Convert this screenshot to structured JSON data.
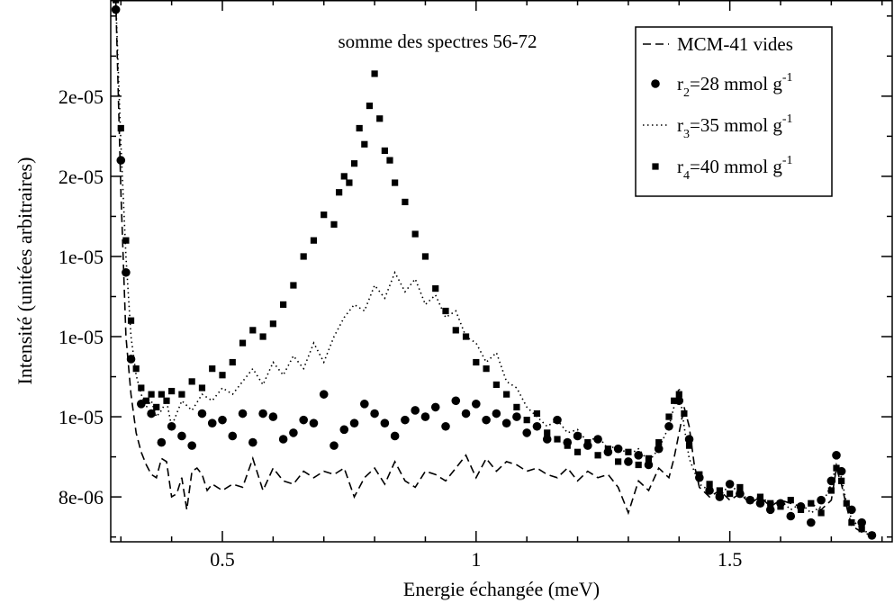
{
  "chart_data": {
    "type": "scatter",
    "title": "",
    "annotation": "somme des spectres 56-72",
    "xlabel": "Energie échangée (meV)",
    "ylabel": "Intensité (unitées arbitraires)",
    "xlim": [
      0.28,
      1.82
    ],
    "ylim": [
      6.6e-06,
      2.35e-05
    ],
    "x_ticks": [
      0.5,
      1,
      1.5
    ],
    "x_tick_labels": [
      "0.5",
      "1",
      "1.5"
    ],
    "y_ticks": [
      8e-06,
      1.05e-05,
      1.3e-05,
      1.55e-05,
      1.8e-05,
      2.05e-05
    ],
    "y_tick_labels": [
      "8e-06",
      "1e-05",
      "1e-05",
      "1e-05",
      "2e-05",
      "2e-05"
    ],
    "grid": false,
    "legend_position": "top-right",
    "series": [
      {
        "name": "MCM-41 vides",
        "legend_label": {
          "prefix": "MCM-41 vides",
          "sub": "",
          "mid": "",
          "sup": ""
        },
        "style": "dashed-line",
        "color": "#000000",
        "x": [
          0.29,
          0.3,
          0.31,
          0.32,
          0.33,
          0.34,
          0.35,
          0.36,
          0.37,
          0.38,
          0.39,
          0.4,
          0.41,
          0.42,
          0.43,
          0.44,
          0.45,
          0.46,
          0.47,
          0.48,
          0.49,
          0.5,
          0.52,
          0.54,
          0.56,
          0.58,
          0.6,
          0.62,
          0.64,
          0.66,
          0.68,
          0.7,
          0.72,
          0.74,
          0.76,
          0.78,
          0.8,
          0.82,
          0.84,
          0.86,
          0.88,
          0.9,
          0.92,
          0.94,
          0.96,
          0.98,
          1.0,
          1.02,
          1.04,
          1.06,
          1.08,
          1.1,
          1.12,
          1.14,
          1.16,
          1.18,
          1.2,
          1.22,
          1.24,
          1.26,
          1.28,
          1.3,
          1.32,
          1.34,
          1.36,
          1.38,
          1.39,
          1.4,
          1.41,
          1.42,
          1.43,
          1.44,
          1.46,
          1.48,
          1.5,
          1.52,
          1.54,
          1.56,
          1.58,
          1.6,
          1.62,
          1.64,
          1.66,
          1.68,
          1.7,
          1.71,
          1.72,
          1.73,
          1.74,
          1.76,
          1.78
        ],
        "y": [
          2.35e-05,
          1.75e-05,
          1.3e-05,
          1.12e-05,
          1e-05,
          9.4e-06,
          9e-06,
          8.7e-06,
          8.6e-06,
          9.2e-06,
          9.1e-06,
          8e-06,
          8.1e-06,
          8.6e-06,
          7.6e-06,
          8.8e-06,
          8.9e-06,
          8.7e-06,
          8.2e-06,
          8.4e-06,
          8.3e-06,
          8.2e-06,
          8.4e-06,
          8.3e-06,
          9.2e-06,
          8.2e-06,
          8.9e-06,
          8.5e-06,
          8.4e-06,
          8.8e-06,
          8.6e-06,
          8.8e-06,
          8.7e-06,
          8.9e-06,
          8e-06,
          8.6e-06,
          8.9e-06,
          8.4e-06,
          9.1e-06,
          8.5e-06,
          8.3e-06,
          8.8e-06,
          8.7e-06,
          8.5e-06,
          8.9e-06,
          9.3e-06,
          8.6e-06,
          9.2e-06,
          8.8e-06,
          9.1e-06,
          9e-06,
          8.8e-06,
          8.9e-06,
          8.7e-06,
          8.6e-06,
          8.9e-06,
          8.5e-06,
          8.8e-06,
          8.6e-06,
          8.7e-06,
          8.3e-06,
          7.5e-06,
          8.5e-06,
          8.2e-06,
          8.9e-06,
          8.6e-06,
          9.2e-06,
          1e-05,
          1.08e-05,
          1.02e-05,
          9e-06,
          8.3e-06,
          8e-06,
          8.2e-06,
          7.9e-06,
          8.1e-06,
          7.8e-06,
          8e-06,
          7.7e-06,
          7.9e-06,
          7.8e-06,
          7.7e-06,
          7.8e-06,
          7.6e-06,
          7.9e-06,
          8.9e-06,
          8.4e-06,
          7.7e-06,
          7.1e-06,
          6.9e-06,
          6.8e-06
        ]
      },
      {
        "name": "r2=28 mmol g-1",
        "legend_label": {
          "prefix": "r",
          "sub": "2",
          "mid": "=28 mmol g",
          "sup": "-1"
        },
        "style": "circles",
        "color": "#000000",
        "x": [
          0.29,
          0.3,
          0.31,
          0.32,
          0.34,
          0.36,
          0.38,
          0.4,
          0.42,
          0.44,
          0.46,
          0.48,
          0.5,
          0.52,
          0.54,
          0.56,
          0.58,
          0.6,
          0.62,
          0.64,
          0.66,
          0.68,
          0.7,
          0.72,
          0.74,
          0.76,
          0.78,
          0.8,
          0.82,
          0.84,
          0.86,
          0.88,
          0.9,
          0.92,
          0.94,
          0.96,
          0.98,
          1.0,
          1.02,
          1.04,
          1.06,
          1.08,
          1.1,
          1.12,
          1.14,
          1.16,
          1.18,
          1.2,
          1.22,
          1.24,
          1.26,
          1.28,
          1.3,
          1.32,
          1.34,
          1.36,
          1.38,
          1.4,
          1.42,
          1.44,
          1.46,
          1.48,
          1.5,
          1.52,
          1.54,
          1.56,
          1.58,
          1.6,
          1.62,
          1.64,
          1.66,
          1.68,
          1.7,
          1.71,
          1.72,
          1.74,
          1.76,
          1.78
        ],
        "y": [
          2.32e-05,
          1.85e-05,
          1.5e-05,
          1.23e-05,
          1.09e-05,
          1.06e-05,
          9.7e-06,
          1.02e-05,
          9.9e-06,
          9.6e-06,
          1.06e-05,
          1.03e-05,
          1.04e-05,
          9.9e-06,
          1.06e-05,
          9.7e-06,
          1.06e-05,
          1.05e-05,
          9.8e-06,
          1e-05,
          1.04e-05,
          1.03e-05,
          1.12e-05,
          9.6e-06,
          1.01e-05,
          1.03e-05,
          1.09e-05,
          1.06e-05,
          1.03e-05,
          9.9e-06,
          1.04e-05,
          1.07e-05,
          1.05e-05,
          1.08e-05,
          1.02e-05,
          1.1e-05,
          1.06e-05,
          1.09e-05,
          1.04e-05,
          1.06e-05,
          1.03e-05,
          1.05e-05,
          1e-05,
          1.02e-05,
          9.8e-06,
          1.04e-05,
          9.7e-06,
          9.9e-06,
          9.6e-06,
          9.8e-06,
          9.4e-06,
          9.5e-06,
          9.1e-06,
          9.3e-06,
          9e-06,
          9.5e-06,
          1.02e-05,
          1.1e-05,
          9.8e-06,
          8.6e-06,
          8.2e-06,
          8e-06,
          8.4e-06,
          8.1e-06,
          7.9e-06,
          7.8e-06,
          7.6e-06,
          7.8e-06,
          7.4e-06,
          7.7e-06,
          7.2e-06,
          7.9e-06,
          8.5e-06,
          9.3e-06,
          8.8e-06,
          7.6e-06,
          7.2e-06,
          6.8e-06
        ]
      },
      {
        "name": "r3=35 mmol g-1",
        "legend_label": {
          "prefix": "r",
          "sub": "3",
          "mid": "=35 mmol g",
          "sup": "-1"
        },
        "style": "dotted-line",
        "color": "#000000",
        "x": [
          0.29,
          0.3,
          0.31,
          0.32,
          0.33,
          0.34,
          0.35,
          0.36,
          0.37,
          0.38,
          0.39,
          0.4,
          0.42,
          0.44,
          0.46,
          0.48,
          0.5,
          0.52,
          0.54,
          0.56,
          0.58,
          0.6,
          0.62,
          0.64,
          0.66,
          0.68,
          0.7,
          0.72,
          0.74,
          0.76,
          0.78,
          0.8,
          0.82,
          0.84,
          0.86,
          0.88,
          0.9,
          0.92,
          0.94,
          0.96,
          0.98,
          1.0,
          1.02,
          1.04,
          1.06,
          1.08,
          1.1,
          1.12,
          1.14,
          1.16,
          1.18,
          1.2,
          1.22,
          1.24,
          1.26,
          1.28,
          1.3,
          1.32,
          1.34,
          1.36,
          1.38,
          1.39,
          1.4,
          1.41,
          1.42,
          1.44,
          1.46,
          1.48,
          1.5,
          1.52,
          1.54,
          1.56,
          1.58,
          1.6,
          1.62,
          1.64,
          1.66,
          1.68,
          1.7,
          1.71,
          1.72,
          1.73,
          1.74,
          1.76,
          1.78
        ],
        "y": [
          2.35e-05,
          1.9e-05,
          1.55e-05,
          1.3e-05,
          1.18e-05,
          1.12e-05,
          1.08e-05,
          1.1e-05,
          1.05e-05,
          1.07e-05,
          1.1e-05,
          1.02e-05,
          1.1e-05,
          1.07e-05,
          1.12e-05,
          1.1e-05,
          1.14e-05,
          1.12e-05,
          1.16e-05,
          1.2e-05,
          1.15e-05,
          1.22e-05,
          1.18e-05,
          1.24e-05,
          1.2e-05,
          1.28e-05,
          1.22e-05,
          1.3e-05,
          1.36e-05,
          1.4e-05,
          1.38e-05,
          1.46e-05,
          1.42e-05,
          1.5e-05,
          1.44e-05,
          1.48e-05,
          1.4e-05,
          1.43e-05,
          1.36e-05,
          1.38e-05,
          1.3e-05,
          1.28e-05,
          1.22e-05,
          1.25e-05,
          1.16e-05,
          1.14e-05,
          1.08e-05,
          1.05e-05,
          1.02e-05,
          1.04e-05,
          1e-05,
          1.01e-05,
          9.7e-06,
          9.9e-06,
          9.5e-06,
          9.6e-06,
          9.3e-06,
          9.5e-06,
          9.1e-06,
          9.5e-06,
          1.02e-05,
          1.08e-05,
          1.14e-05,
          1.02e-05,
          9.2e-06,
          8.4e-06,
          8.2e-06,
          8e-06,
          8.4e-06,
          8.1e-06,
          7.9e-06,
          8e-06,
          7.8e-06,
          7.9e-06,
          7.6e-06,
          7.8e-06,
          7.5e-06,
          7.7e-06,
          8.4e-06,
          9e-06,
          8.6e-06,
          7.8e-06,
          7.3e-06,
          7e-06,
          6.8e-06
        ]
      },
      {
        "name": "r4=40 mmol g-1",
        "legend_label": {
          "prefix": "r",
          "sub": "4",
          "mid": "=40 mmol g",
          "sup": "-1"
        },
        "style": "squares",
        "color": "#000000",
        "x": [
          0.29,
          0.3,
          0.31,
          0.32,
          0.33,
          0.34,
          0.35,
          0.36,
          0.37,
          0.38,
          0.39,
          0.4,
          0.42,
          0.44,
          0.46,
          0.48,
          0.5,
          0.52,
          0.54,
          0.56,
          0.58,
          0.6,
          0.62,
          0.64,
          0.66,
          0.68,
          0.7,
          0.72,
          0.73,
          0.74,
          0.75,
          0.76,
          0.77,
          0.78,
          0.79,
          0.8,
          0.81,
          0.82,
          0.83,
          0.84,
          0.86,
          0.88,
          0.9,
          0.92,
          0.94,
          0.96,
          0.98,
          1.0,
          1.02,
          1.04,
          1.06,
          1.08,
          1.1,
          1.12,
          1.14,
          1.16,
          1.18,
          1.2,
          1.22,
          1.24,
          1.26,
          1.28,
          1.3,
          1.32,
          1.34,
          1.36,
          1.38,
          1.39,
          1.4,
          1.41,
          1.42,
          1.44,
          1.46,
          1.48,
          1.5,
          1.52,
          1.54,
          1.56,
          1.58,
          1.6,
          1.62,
          1.64,
          1.66,
          1.68,
          1.7,
          1.71,
          1.72,
          1.73,
          1.74,
          1.76,
          1.78
        ],
        "y": [
          2.35e-05,
          1.95e-05,
          1.6e-05,
          1.35e-05,
          1.2e-05,
          1.14e-05,
          1.1e-05,
          1.12e-05,
          1.08e-05,
          1.12e-05,
          1.1e-05,
          1.13e-05,
          1.12e-05,
          1.16e-05,
          1.14e-05,
          1.2e-05,
          1.18e-05,
          1.22e-05,
          1.28e-05,
          1.32e-05,
          1.3e-05,
          1.34e-05,
          1.4e-05,
          1.46e-05,
          1.55e-05,
          1.6e-05,
          1.68e-05,
          1.65e-05,
          1.75e-05,
          1.8e-05,
          1.78e-05,
          1.84e-05,
          1.95e-05,
          1.9e-05,
          2.02e-05,
          2.12e-05,
          1.98e-05,
          1.88e-05,
          1.85e-05,
          1.78e-05,
          1.72e-05,
          1.62e-05,
          1.55e-05,
          1.45e-05,
          1.38e-05,
          1.32e-05,
          1.3e-05,
          1.22e-05,
          1.2e-05,
          1.15e-05,
          1.12e-05,
          1.08e-05,
          1.04e-05,
          1.06e-05,
          1e-05,
          9.8e-06,
          9.6e-06,
          9.4e-06,
          9.7e-06,
          9.3e-06,
          9.5e-06,
          9.1e-06,
          9.4e-06,
          9e-06,
          9.2e-06,
          9.7e-06,
          1.05e-05,
          1.1e-05,
          1.12e-05,
          1.06e-05,
          9.6e-06,
          8.7e-06,
          8.4e-06,
          8.2e-06,
          8.1e-06,
          8.3e-06,
          7.9e-06,
          8e-06,
          7.8e-06,
          7.7e-06,
          7.9e-06,
          7.6e-06,
          7.8e-06,
          7.5e-06,
          8.2e-06,
          8.9e-06,
          8.5e-06,
          7.8e-06,
          7.2e-06,
          7e-06,
          6.8e-06
        ]
      }
    ]
  }
}
